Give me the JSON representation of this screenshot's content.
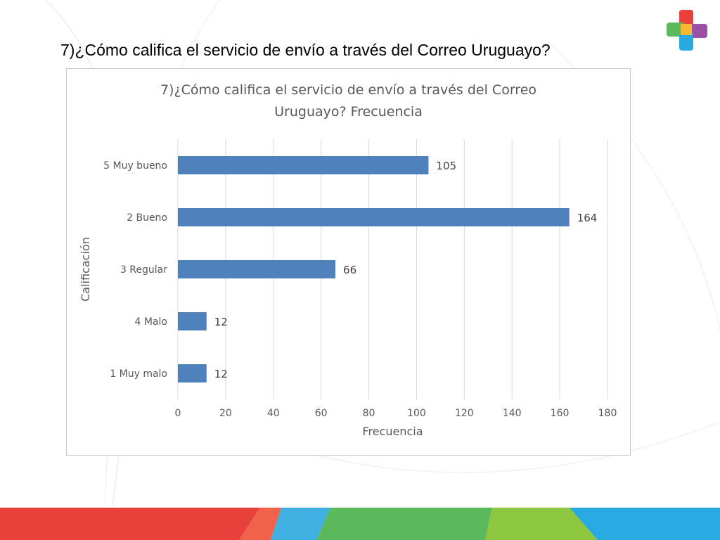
{
  "slide": {
    "title": "7)¿Cómo califica el servicio de envío a través del Correo Uruguayo?"
  },
  "logo": {
    "icon": "cross-logo-icon"
  },
  "colors": {
    "bar": "#4f81bd",
    "grid": "#d9d9d9",
    "text": "#595959",
    "band": [
      "#e8413c",
      "#f0634a",
      "#3fb0e0",
      "#5cb85c",
      "#8dc63f",
      "#29a9e1"
    ]
  },
  "chart_data": {
    "type": "bar",
    "orientation": "horizontal",
    "title_line1": "7)¿Cómo califica el servicio de envío a través del Correo",
    "title_line2": "Uruguayo? Frecuencia",
    "categories": [
      "5 Muy bueno",
      "2 Bueno",
      "3 Regular",
      "4 Malo",
      "1 Muy malo"
    ],
    "values": [
      105,
      164,
      66,
      12,
      12
    ],
    "data_labels": [
      "105",
      "164",
      "66",
      "12",
      "12"
    ],
    "xlabel": "Frecuencia",
    "ylabel": "Calificación",
    "xlim": [
      0,
      180
    ],
    "xticks": [
      0,
      20,
      40,
      60,
      80,
      100,
      120,
      140,
      160,
      180
    ],
    "xtick_labels": [
      "0",
      "20",
      "40",
      "60",
      "80",
      "100",
      "120",
      "140",
      "160",
      "180"
    ],
    "grid": true,
    "legend": "none"
  }
}
